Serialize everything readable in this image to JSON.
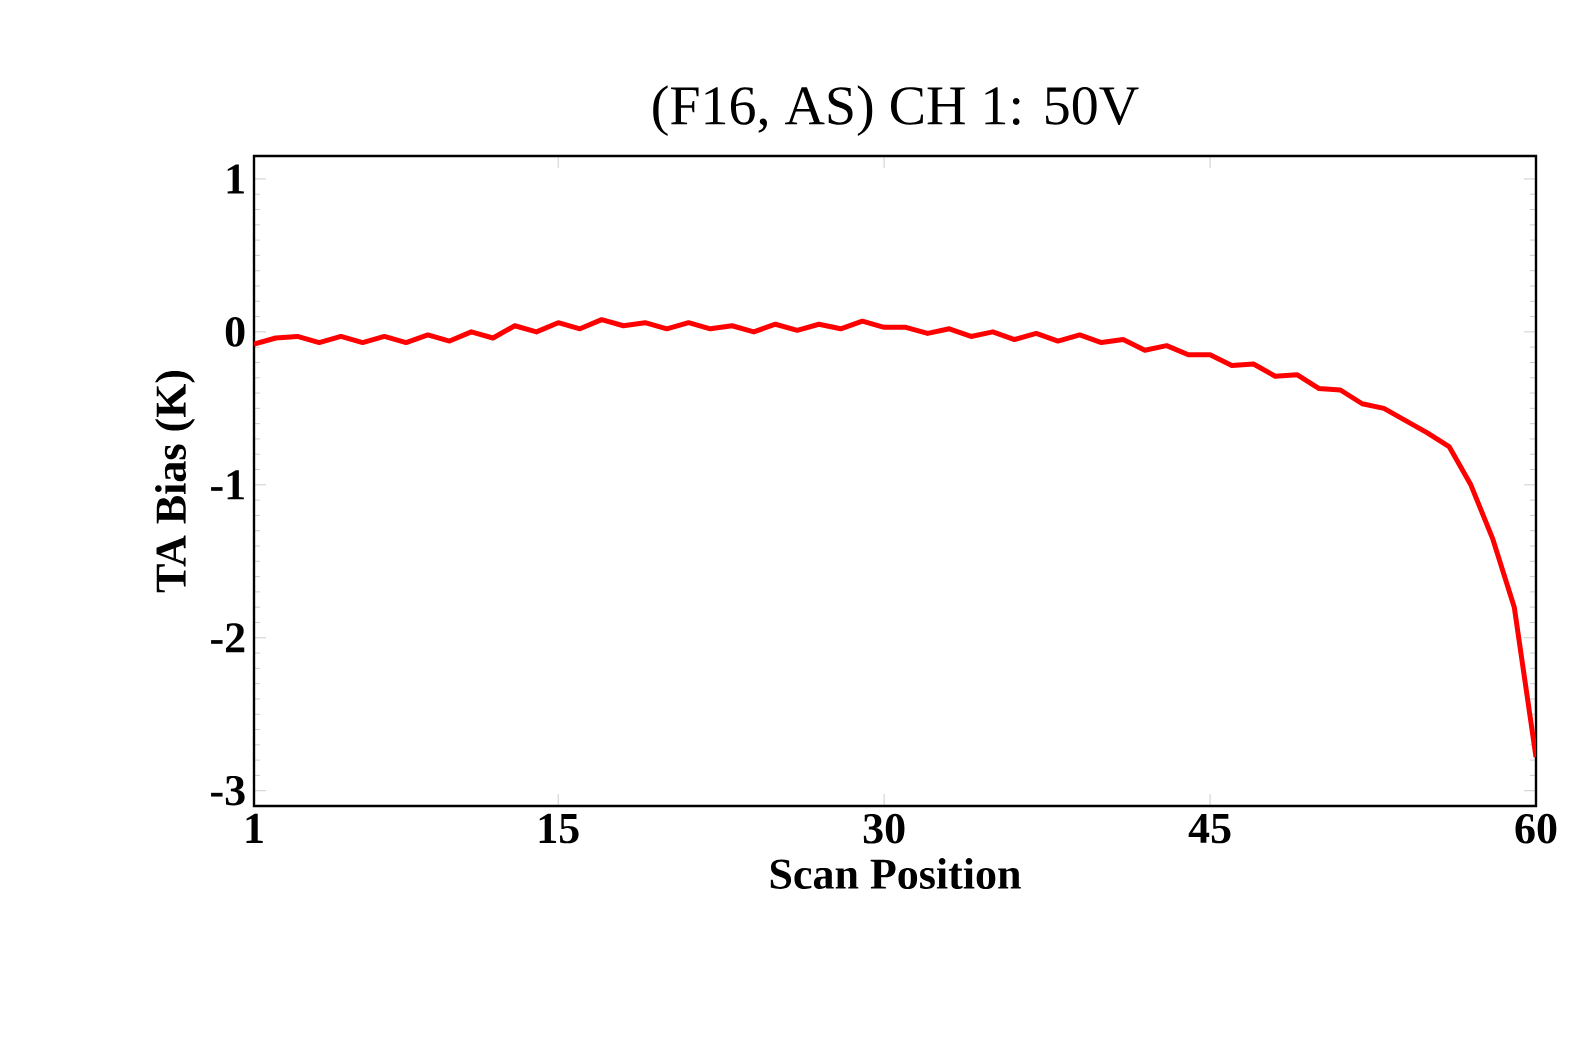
{
  "chart_data": {
    "type": "line",
    "title": "(F16, AS) CH 1: 50V",
    "xlabel": "Scan Position",
    "ylabel": "TA Bias (K)",
    "xlim": [
      1,
      60
    ],
    "ylim": [
      -3.1,
      1.15
    ],
    "xticks": [
      1,
      15,
      30,
      45,
      60
    ],
    "yticks": [
      -3,
      -2,
      -1,
      0,
      1
    ],
    "grid": false,
    "series": [
      {
        "color": "#ff0000",
        "x": [
          1,
          2,
          3,
          4,
          5,
          6,
          7,
          8,
          9,
          10,
          11,
          12,
          13,
          14,
          15,
          16,
          17,
          18,
          19,
          20,
          21,
          22,
          23,
          24,
          25,
          26,
          27,
          28,
          29,
          30,
          31,
          32,
          33,
          34,
          35,
          36,
          37,
          38,
          39,
          40,
          41,
          42,
          43,
          44,
          45,
          46,
          47,
          48,
          49,
          50,
          51,
          52,
          53,
          54,
          55,
          56,
          57,
          58,
          59,
          60
        ],
        "values": [
          -0.08,
          -0.04,
          -0.03,
          -0.07,
          -0.03,
          -0.07,
          -0.03,
          -0.07,
          -0.02,
          -0.06,
          0.0,
          -0.04,
          0.04,
          0.0,
          0.06,
          0.02,
          0.08,
          0.04,
          0.06,
          0.02,
          0.06,
          0.02,
          0.04,
          0.0,
          0.05,
          0.01,
          0.05,
          0.02,
          0.07,
          0.03,
          0.03,
          -0.01,
          0.02,
          -0.03,
          0.0,
          -0.05,
          -0.01,
          -0.06,
          -0.02,
          -0.07,
          -0.05,
          -0.12,
          -0.09,
          -0.15,
          -0.15,
          -0.22,
          -0.21,
          -0.29,
          -0.28,
          -0.37,
          -0.38,
          -0.47,
          -0.5,
          -0.58,
          -0.66,
          -0.75,
          -1.0,
          -1.35,
          -1.8,
          -2.78
        ]
      }
    ]
  }
}
